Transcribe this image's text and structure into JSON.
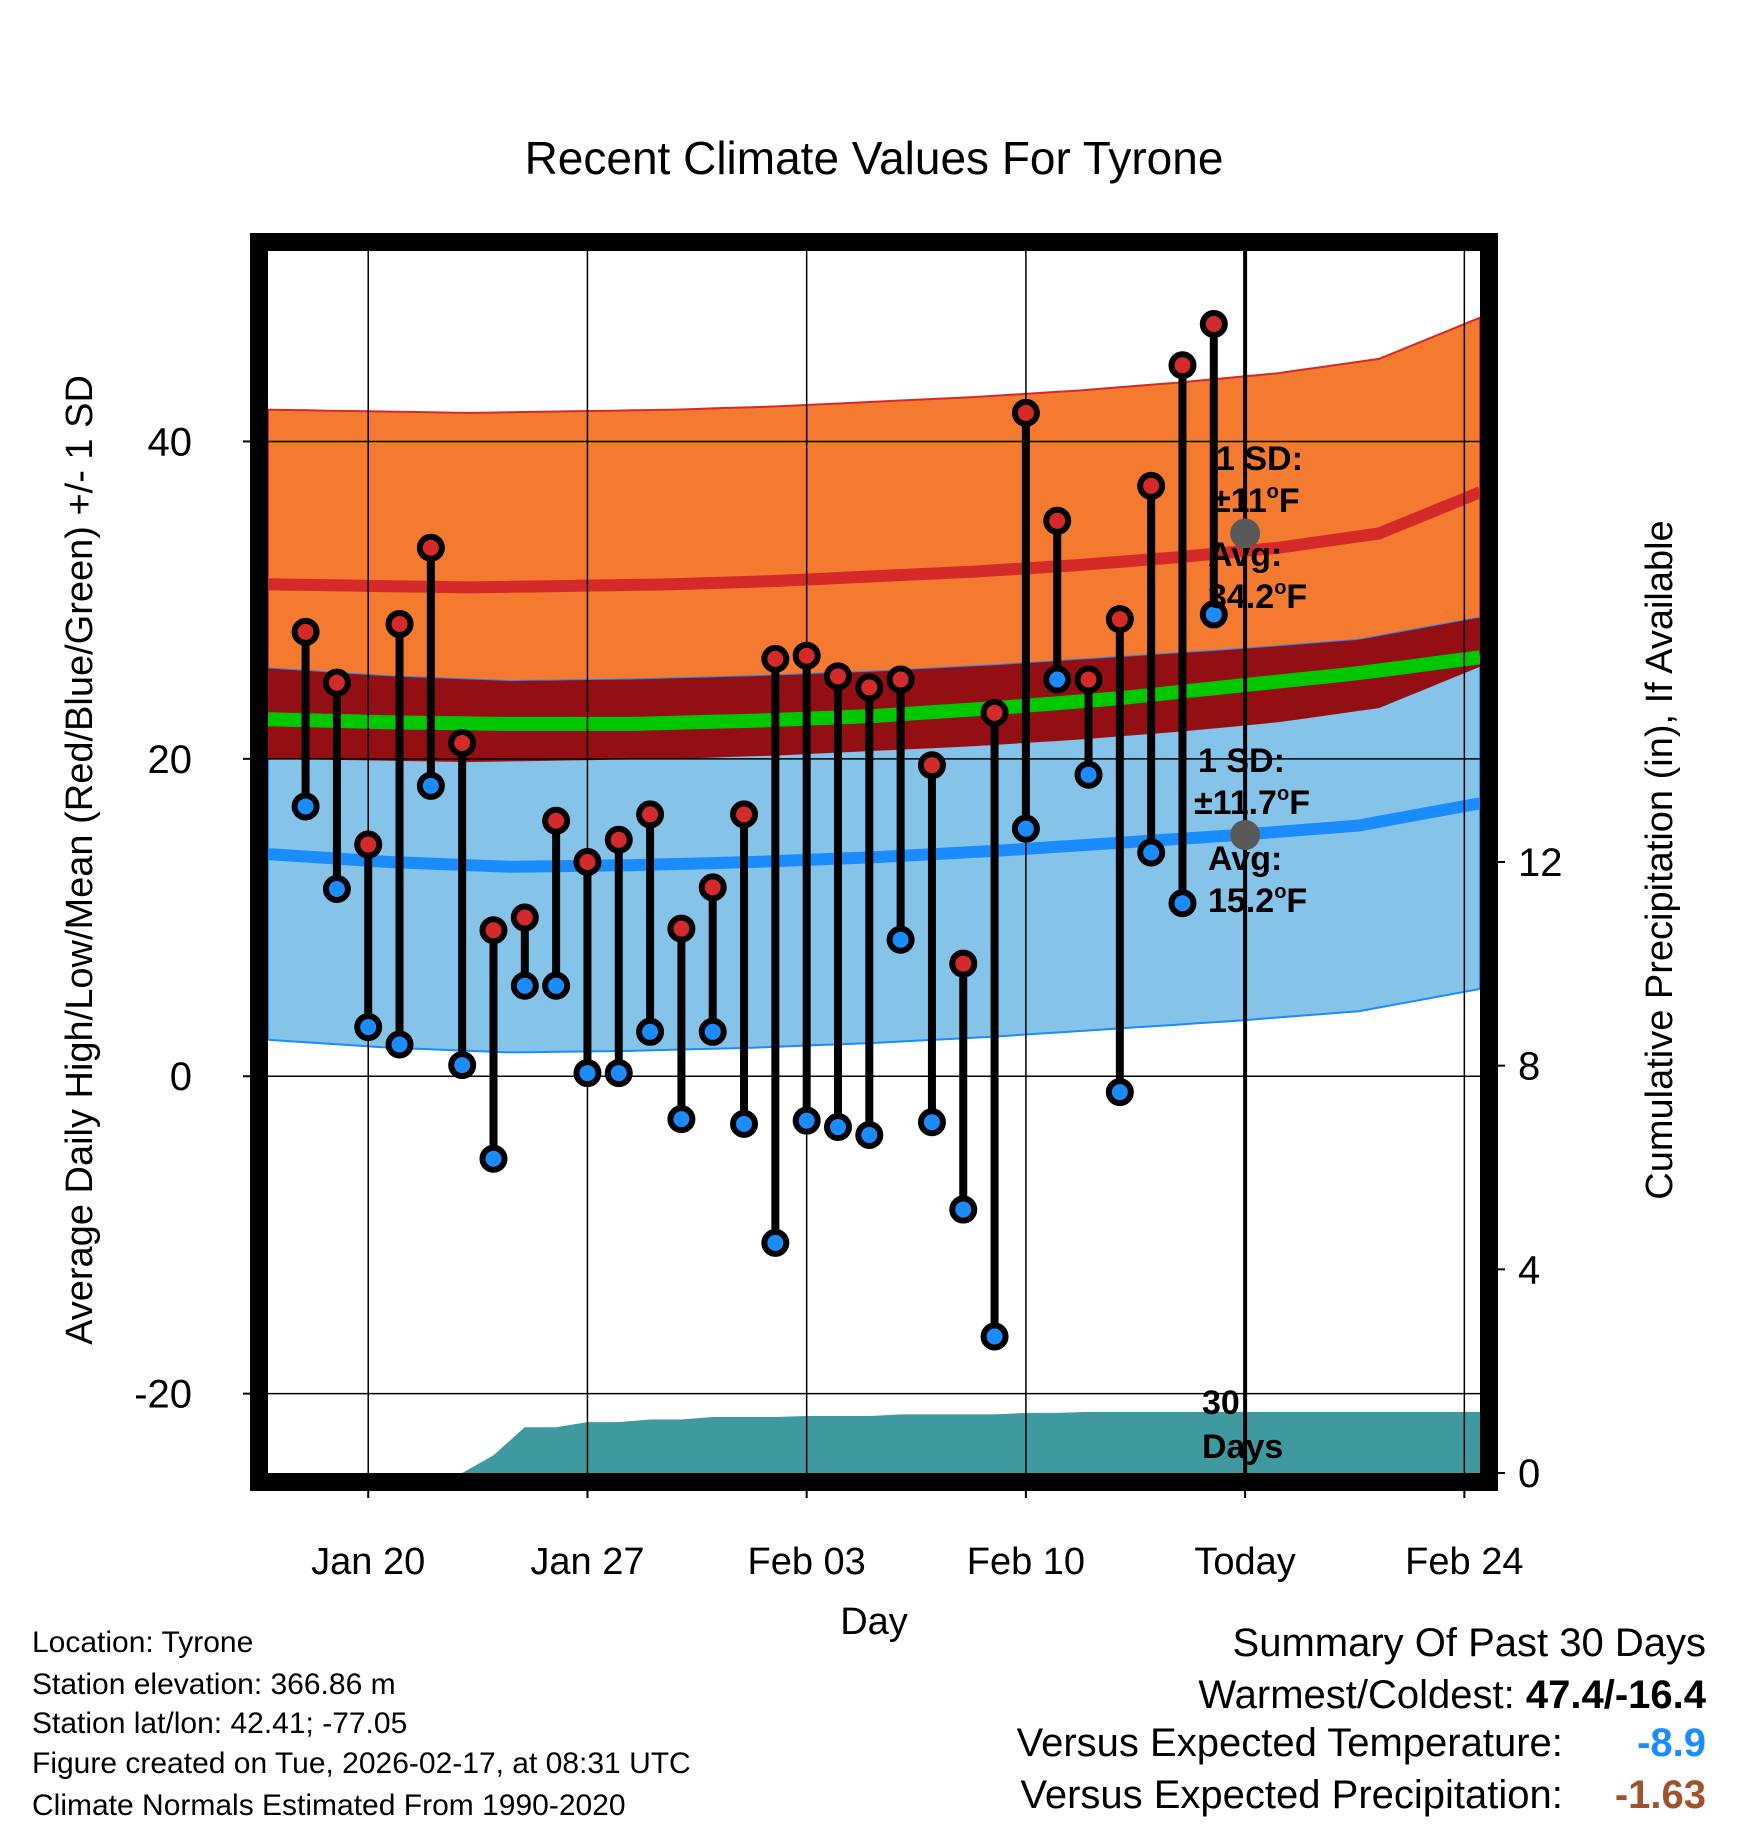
{
  "chart_data": {
    "type": "line",
    "title": "Recent Climate Values For Tyrone",
    "xlabel": "Day",
    "ylabel": "Average Daily High/Low/Mean (Red/Blue/Green) +/- 1 SD",
    "y2label": "Cumulative Precipitation (in), If Available",
    "xlim": [
      -3.2,
      35.5
    ],
    "ylim": [
      -25,
      52
    ],
    "y2lim": [
      0,
      24
    ],
    "x_tick_labels": [
      {
        "x": 0,
        "label": "Jan 20"
      },
      {
        "x": 7,
        "label": "Jan 27"
      },
      {
        "x": 14,
        "label": "Feb 03"
      },
      {
        "x": 21,
        "label": "Feb 10"
      },
      {
        "x": 28,
        "label": "Today"
      },
      {
        "x": 35,
        "label": "Feb 24"
      }
    ],
    "y_ticks": [
      -20,
      0,
      20,
      40
    ],
    "y2_ticks": [
      0,
      4,
      8,
      12
    ],
    "today_x": 28,
    "daily_high": [
      28.0,
      24.8,
      14.6,
      28.5,
      33.3,
      21.0,
      9.2,
      10.0,
      16.1,
      13.5,
      14.9,
      16.5,
      9.3,
      11.9,
      16.5,
      26.3,
      26.5,
      25.2,
      24.5,
      25.0,
      19.6,
      7.1,
      22.9,
      41.8,
      35.0,
      25.0,
      28.8,
      37.2,
      44.8,
      47.4
    ],
    "daily_low": [
      17.0,
      11.8,
      3.1,
      2.0,
      18.3,
      0.7,
      -5.2,
      5.7,
      5.7,
      0.2,
      0.2,
      2.8,
      -2.7,
      2.8,
      -3.0,
      -10.5,
      -2.8,
      -3.2,
      -3.7,
      8.6,
      -2.9,
      -8.4,
      -16.4,
      15.6,
      25.0,
      19.0,
      -1.0,
      14.1,
      10.9,
      29.1
    ],
    "normal_high": [
      31.0,
      30.9,
      30.8,
      30.9,
      31.0,
      31.2,
      31.5,
      31.8,
      32.2,
      32.7,
      33.3,
      34.2,
      36.8
    ],
    "normal_high_sd": 11,
    "normal_low": [
      14.0,
      13.5,
      13.2,
      13.3,
      13.5,
      13.8,
      14.2,
      14.7,
      15.2,
      15.8,
      17.2
    ],
    "normal_low_sd": 11.7,
    "normal_mean": [
      22.5,
      22.3,
      22.2,
      22.2,
      22.4,
      22.7,
      23.2,
      23.8,
      24.6,
      25.4,
      26.4
    ],
    "precip_cumulative": [
      0,
      0,
      0,
      0,
      0,
      0,
      0.35,
      0.9,
      0.9,
      1.0,
      1.0,
      1.05,
      1.05,
      1.1,
      1.1,
      1.1,
      1.12,
      1.12,
      1.12,
      1.15,
      1.15,
      1.15,
      1.15,
      1.18,
      1.18,
      1.2,
      1.2,
      1.2,
      1.2,
      1.2
    ],
    "annotations": {
      "high_sd_line1": "1 SD:",
      "high_sd_line2": "±11",
      "high_sd_unit": "F",
      "high_avg_line1": "Avg:",
      "high_avg_line2": "34.2",
      "high_avg_unit": "F",
      "high_avg_value": 34.2,
      "low_sd_line1": "1 SD:",
      "low_sd_line2": "±11.7",
      "low_sd_unit": "F",
      "low_avg_line1": "Avg:",
      "low_avg_line2": "15.2",
      "low_avg_unit": "F",
      "low_avg_value": 15.2,
      "degree_symbol": "o",
      "window_line1": "30",
      "window_line2": "Days"
    },
    "colors": {
      "high_band": "#f47a30",
      "high_line": "#d42a2a",
      "low_band": "#85c4e8",
      "low_line": "#1a8cff",
      "mean_band": "#940f14",
      "mean_line": "#00c800",
      "precip": "#3f9aa0",
      "annotation": "#595959",
      "high_marker": "#d42a2a",
      "low_marker": "#1a8cff"
    }
  },
  "info": {
    "location": "Location: Tyrone",
    "elevation": "Station elevation: 366.86 m",
    "latlon": "Station lat/lon: 42.41; -77.05",
    "created": "Figure created on Tue, 2026-02-17, at 08:31 UTC",
    "normals": "Climate Normals Estimated From 1990-2020"
  },
  "summary": {
    "title": "Summary Of Past 30 Days",
    "warmest_label": "Warmest/Coldest:",
    "warmest_value": "47.4/-16.4",
    "temp_label": "Versus Expected Temperature:",
    "temp_value": "-8.9",
    "temp_color": "#1a8cff",
    "precip_label": "Versus Expected Precipitation:",
    "precip_value": "-1.63",
    "precip_color": "#a0522d"
  }
}
